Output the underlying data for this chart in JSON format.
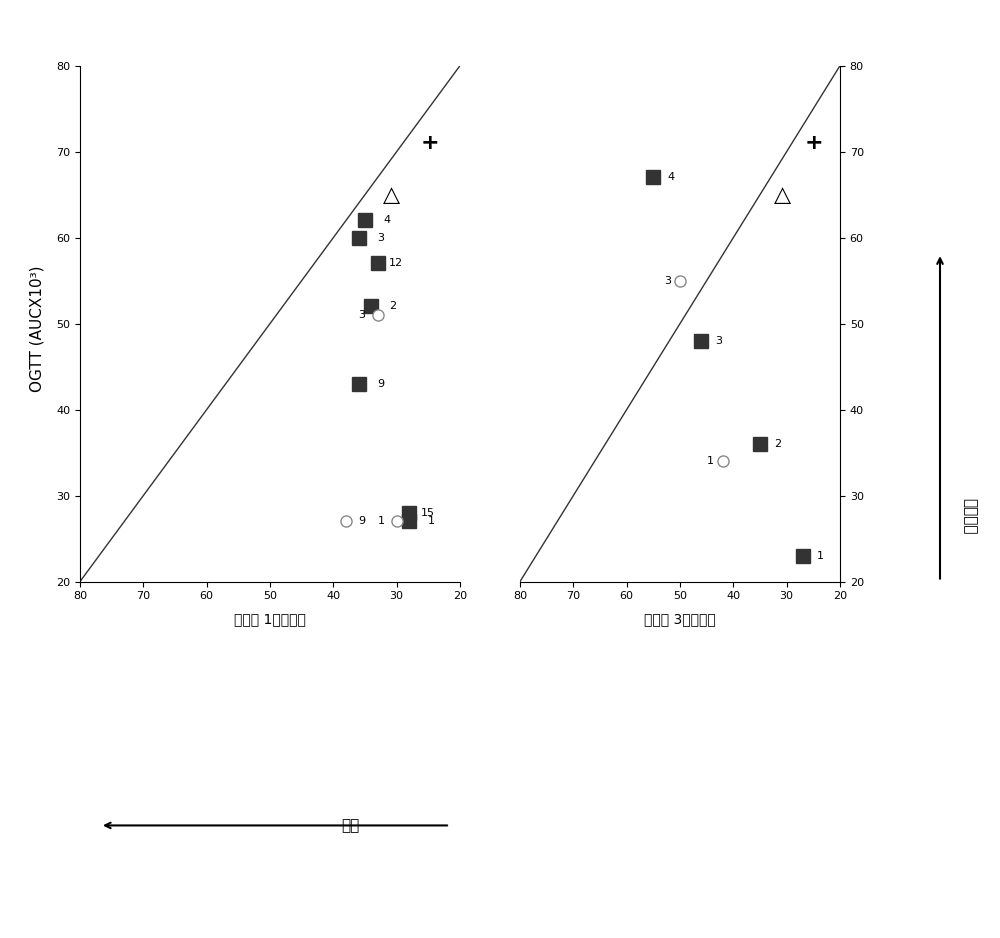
{
  "fig_width": 10.0,
  "fig_height": 9.38,
  "bg_color": "#ffffff",
  "panel1_title": "線維症 1ヶ月以下",
  "panel2_title": "線維症 3ヶ月以下",
  "ylabel": "OGTT (AUCX10³)",
  "xlabel_bottom": "症第",
  "ylabel_right": "瑞師利率",
  "xlim": [
    20,
    80
  ],
  "ylim": [
    20,
    80
  ],
  "xticks": [
    20,
    30,
    40,
    50,
    60,
    70,
    80
  ],
  "yticks": [
    20,
    30,
    40,
    50,
    60,
    70,
    80
  ],
  "diag_color": "#333333",
  "square_color": "#333333",
  "circle_color": "#888888",
  "panel1_squares": [
    [
      28,
      28
    ],
    [
      28,
      27
    ],
    [
      36,
      43
    ],
    [
      34,
      52
    ],
    [
      33,
      57
    ],
    [
      36,
      60
    ],
    [
      35,
      62
    ]
  ],
  "panel1_squares_labels": [
    "15",
    "1",
    "9",
    "2",
    "12",
    "3",
    "4"
  ],
  "panel1_circles": [
    [
      30,
      27
    ],
    [
      33,
      51
    ]
  ],
  "panel1_circles_labels": [
    "1",
    "3"
  ],
  "panel1_circle9": [
    38,
    27
  ],
  "panel1_circle9_label": "9",
  "panel2_squares": [
    [
      27,
      23
    ],
    [
      35,
      36
    ],
    [
      46,
      48
    ],
    [
      55,
      67
    ]
  ],
  "panel2_squares_labels": [
    "1",
    "2",
    "3",
    "4"
  ],
  "panel2_circles": [
    [
      42,
      34
    ],
    [
      50,
      55
    ]
  ],
  "panel2_circles_labels": [
    "1",
    "3"
  ],
  "legend_triangle_label": "△",
  "legend_plus_label": "+"
}
